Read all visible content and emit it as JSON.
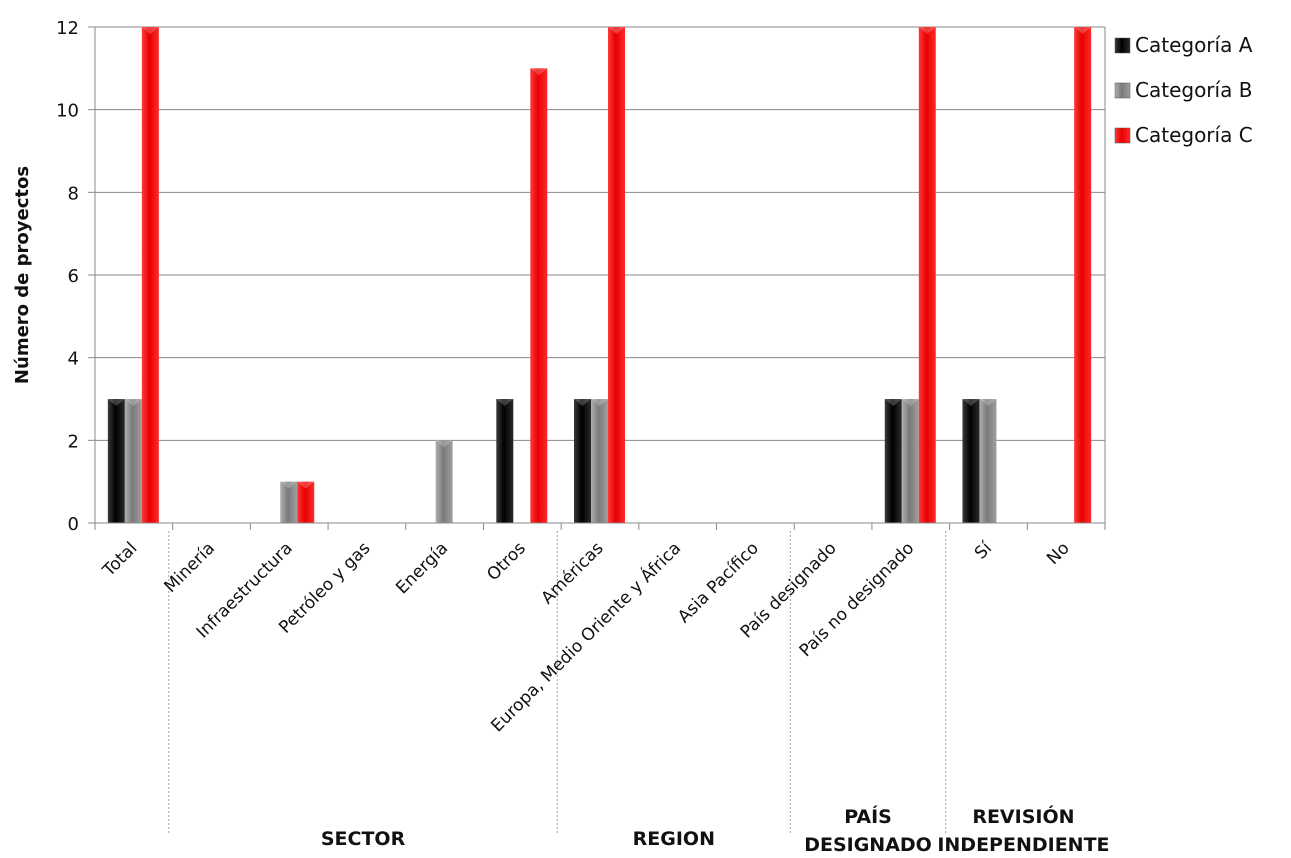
{
  "chart_data": {
    "type": "bar",
    "ylabel": "Número de proyectos",
    "ylim": [
      0,
      12
    ],
    "yticks": [
      0,
      2,
      4,
      6,
      8,
      10,
      12
    ],
    "grid": true,
    "legend_position": "right",
    "categories": [
      "Total",
      "Minería",
      "Infraestructura",
      "Petróleo y gas",
      "Energía",
      "Otros",
      "Américas",
      "Europa, Medio Oriente y África",
      "Asia Pacífico",
      "País designado",
      "País no designado",
      "Sí",
      "No"
    ],
    "series": [
      {
        "name": "Categoría A",
        "color": "#111111",
        "values": [
          3,
          0,
          0,
          0,
          0,
          3,
          3,
          0,
          0,
          0,
          3,
          3,
          0
        ]
      },
      {
        "name": "Categoría B",
        "color": "#8c8c8c",
        "values": [
          3,
          0,
          1,
          0,
          2,
          0,
          3,
          0,
          0,
          0,
          3,
          3,
          0
        ]
      },
      {
        "name": "Categoría C",
        "color": "#ff0000",
        "values": [
          12,
          0,
          1,
          0,
          0,
          11,
          12,
          0,
          0,
          0,
          12,
          0,
          12
        ]
      }
    ],
    "groups": [
      {
        "lines": [
          "SECTOR"
        ],
        "categories": [
          "Minería",
          "Infraestructura",
          "Petróleo y gas",
          "Energía",
          "Otros"
        ]
      },
      {
        "lines": [
          "REGION"
        ],
        "categories": [
          "Américas",
          "Europa, Medio Oriente y África",
          "Asia Pacífico"
        ]
      },
      {
        "lines": [
          "PAÍS",
          "DESIGNADO"
        ],
        "categories": [
          "País designado",
          "País no designado"
        ]
      },
      {
        "lines": [
          "REVISIÓN",
          "INDEPENDIENTE"
        ],
        "categories": [
          "Sí",
          "No"
        ]
      }
    ]
  }
}
